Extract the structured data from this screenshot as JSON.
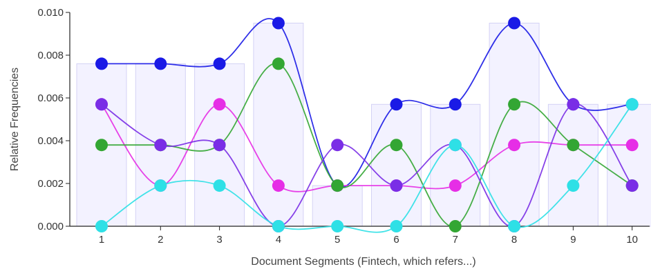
{
  "chart_data": {
    "type": "line",
    "title": "",
    "xlabel": "Document Segments (Fintech, which refers...)",
    "ylabel": "Relative Frequencies",
    "categories": [
      "1",
      "2",
      "3",
      "4",
      "5",
      "6",
      "7",
      "8",
      "9",
      "10"
    ],
    "ylim": [
      0,
      0.01
    ],
    "yticks": [
      "0.000",
      "0.002",
      "0.004",
      "0.006",
      "0.008",
      "0.010"
    ],
    "grid": false,
    "legend": "none",
    "background_bars": [
      0.0076,
      0.0076,
      0.0076,
      0.0095,
      0.0019,
      0.0057,
      0.0057,
      0.0095,
      0.0057,
      0.0057
    ],
    "series": [
      {
        "color": "#1a1ae6",
        "values": [
          0.0076,
          0.0076,
          0.0076,
          0.0095,
          0.0019,
          0.0057,
          0.0057,
          0.0095,
          0.0057,
          0.0057
        ]
      },
      {
        "color": "#e62ee6",
        "values": [
          0.0057,
          0.0019,
          0.0057,
          0.0019,
          0.0019,
          0.0019,
          0.0019,
          0.0038,
          0.0038,
          0.0038
        ]
      },
      {
        "color": "#33a633",
        "values": [
          0.0038,
          0.0038,
          0.0038,
          0.0076,
          0.0019,
          0.0038,
          0.0,
          0.0057,
          0.0038,
          0.0019
        ]
      },
      {
        "color": "#7a2ee6",
        "values": [
          0.0057,
          0.0038,
          0.0038,
          0.0,
          0.0038,
          0.0019,
          0.0038,
          0.0,
          0.0057,
          0.0019
        ]
      },
      {
        "color": "#2ee0e6",
        "values": [
          0.0,
          0.0019,
          0.0019,
          0.0,
          0.0,
          0.0,
          0.0038,
          0.0,
          0.0019,
          0.0057
        ]
      }
    ]
  }
}
